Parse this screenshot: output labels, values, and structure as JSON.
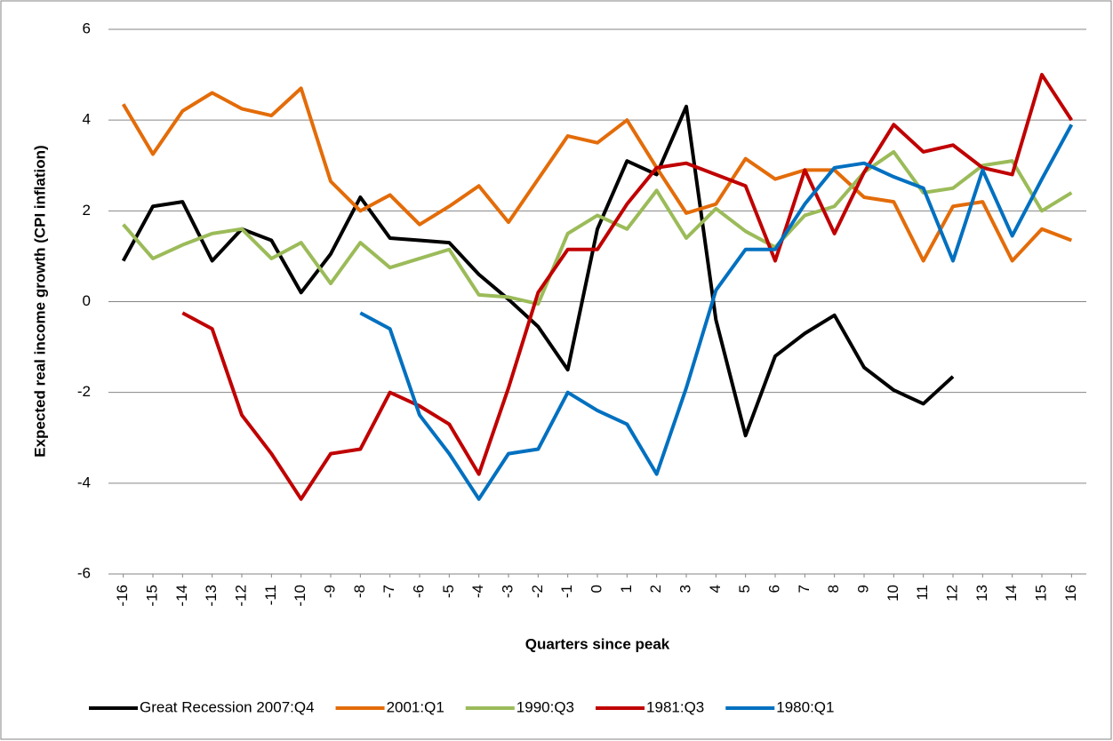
{
  "chart_data": {
    "type": "line",
    "x_label": "Quarters since peak",
    "y_label": "Expected real income growth (CPI inflation)",
    "x": [
      -16,
      -15,
      -14,
      -13,
      -12,
      -11,
      -10,
      -9,
      -8,
      -7,
      -6,
      -5,
      -4,
      -3,
      -2,
      -1,
      0,
      1,
      2,
      3,
      4,
      5,
      6,
      7,
      8,
      9,
      10,
      11,
      12,
      13,
      14,
      15,
      16
    ],
    "xlim": [
      -16.5,
      16.5
    ],
    "xticks": [
      -16,
      -15,
      -14,
      -13,
      -12,
      -11,
      -10,
      -9,
      -8,
      -7,
      -6,
      -5,
      -4,
      -3,
      -2,
      -1,
      0,
      1,
      2,
      3,
      4,
      5,
      6,
      7,
      8,
      9,
      10,
      11,
      12,
      13,
      14,
      15,
      16
    ],
    "ylim": [
      -6,
      6
    ],
    "yticks": [
      -6,
      -4,
      -2,
      0,
      2,
      4,
      6
    ],
    "grid": true,
    "legend": "bottom",
    "series": [
      {
        "name": "Great Recession 2007:Q4",
        "color": "#000000",
        "values": [
          0.9,
          2.1,
          2.2,
          0.9,
          1.6,
          1.35,
          0.2,
          1.05,
          2.3,
          1.4,
          1.35,
          1.3,
          0.6,
          0.05,
          -0.55,
          -1.5,
          1.6,
          3.1,
          2.8,
          4.3,
          -0.4,
          -2.95,
          -1.2,
          -0.7,
          -0.3,
          -1.45,
          -1.95,
          -2.25,
          -1.65,
          null,
          null,
          null,
          null
        ]
      },
      {
        "name": "2001:Q1",
        "color": "#E36C09",
        "values": [
          4.35,
          3.25,
          4.2,
          4.6,
          4.25,
          4.1,
          4.7,
          2.65,
          2.0,
          2.35,
          1.7,
          2.1,
          2.55,
          1.75,
          2.7,
          3.65,
          3.5,
          4.0,
          2.95,
          1.95,
          2.15,
          3.15,
          2.7,
          2.9,
          2.9,
          2.3,
          2.2,
          0.9,
          2.1,
          2.2,
          0.9,
          1.6,
          1.35
        ]
      },
      {
        "name": "1990:Q3",
        "color": "#9BBB59",
        "values": [
          1.7,
          0.95,
          1.25,
          1.5,
          1.6,
          0.95,
          1.3,
          0.4,
          1.3,
          0.75,
          0.95,
          1.15,
          0.15,
          0.1,
          -0.05,
          1.5,
          1.9,
          1.6,
          2.45,
          1.4,
          2.05,
          1.55,
          1.2,
          1.9,
          2.1,
          2.85,
          3.3,
          2.4,
          2.5,
          3.0,
          3.1,
          2.0,
          2.4
        ]
      },
      {
        "name": "1981:Q3",
        "color": "#C00000",
        "values": [
          null,
          null,
          -0.25,
          -0.6,
          -2.5,
          -3.35,
          -4.35,
          -3.35,
          -3.25,
          -2.0,
          -2.3,
          -2.7,
          -3.8,
          -1.9,
          0.2,
          1.15,
          1.15,
          2.15,
          2.95,
          3.05,
          2.8,
          2.55,
          0.9,
          2.9,
          1.5,
          2.85,
          3.9,
          3.3,
          3.45,
          2.95,
          2.8,
          5.0,
          4.0
        ]
      },
      {
        "name": "1980:Q1",
        "color": "#0070C0",
        "values": [
          null,
          null,
          null,
          null,
          null,
          null,
          null,
          null,
          -0.25,
          -0.6,
          -2.5,
          -3.35,
          -4.35,
          -3.35,
          -3.25,
          -2.0,
          -2.4,
          -2.7,
          -3.8,
          -1.9,
          0.25,
          1.15,
          1.15,
          2.15,
          2.95,
          3.05,
          2.75,
          2.5,
          0.9,
          2.9,
          1.45,
          2.7,
          3.9
        ]
      }
    ]
  }
}
